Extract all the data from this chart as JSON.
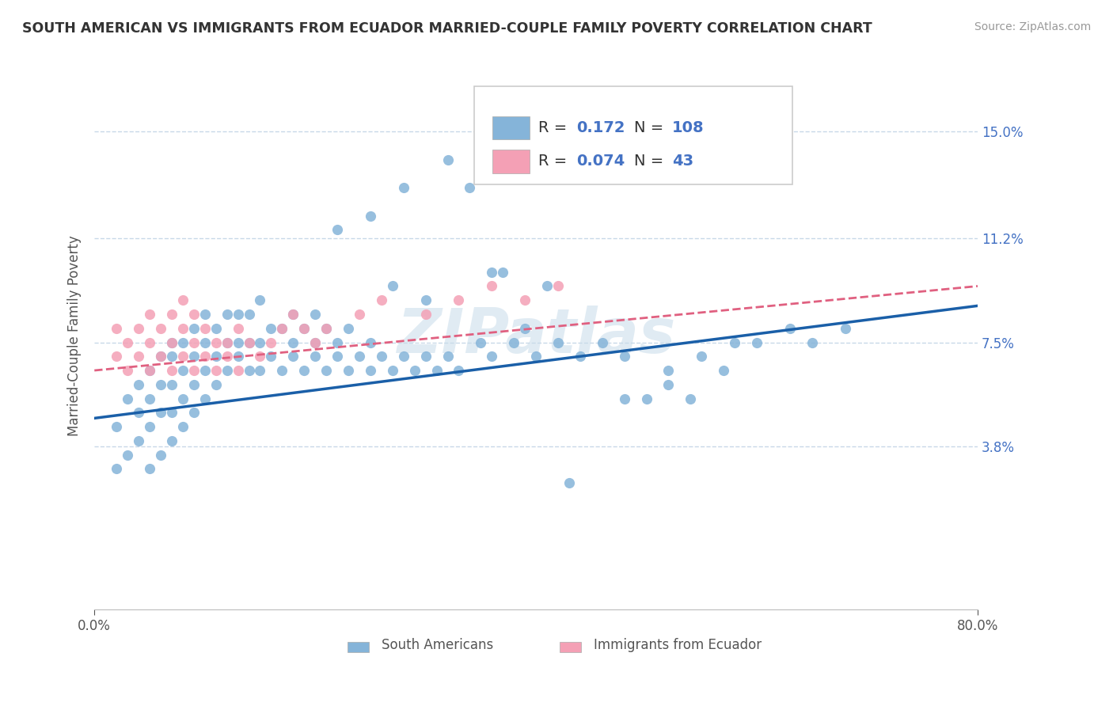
{
  "title": "SOUTH AMERICAN VS IMMIGRANTS FROM ECUADOR MARRIED-COUPLE FAMILY POVERTY CORRELATION CHART",
  "source": "Source: ZipAtlas.com",
  "ylabel": "Married-Couple Family Poverty",
  "xlim": [
    0.0,
    0.8
  ],
  "ylim": [
    -0.02,
    0.175
  ],
  "yticks": [
    0.038,
    0.075,
    0.112,
    0.15
  ],
  "ytick_labels": [
    "3.8%",
    "7.5%",
    "11.2%",
    "15.0%"
  ],
  "xticks": [
    0.0,
    0.8
  ],
  "xtick_labels": [
    "0.0%",
    "80.0%"
  ],
  "r_blue": 0.172,
  "n_blue": 108,
  "r_pink": 0.074,
  "n_pink": 43,
  "blue_color": "#85b4d9",
  "pink_color": "#f4a0b5",
  "line_blue_color": "#1a5fa8",
  "line_pink_color": "#e06080",
  "grid_color": "#c8d8e8",
  "watermark": "ZIPatlas",
  "legend_label_blue": "South Americans",
  "legend_label_pink": "Immigrants from Ecuador",
  "blue_scatter_x": [
    0.02,
    0.02,
    0.03,
    0.03,
    0.04,
    0.04,
    0.04,
    0.05,
    0.05,
    0.05,
    0.05,
    0.06,
    0.06,
    0.06,
    0.06,
    0.07,
    0.07,
    0.07,
    0.07,
    0.07,
    0.08,
    0.08,
    0.08,
    0.08,
    0.09,
    0.09,
    0.09,
    0.09,
    0.1,
    0.1,
    0.1,
    0.1,
    0.11,
    0.11,
    0.11,
    0.12,
    0.12,
    0.12,
    0.13,
    0.13,
    0.13,
    0.14,
    0.14,
    0.14,
    0.15,
    0.15,
    0.15,
    0.16,
    0.16,
    0.17,
    0.17,
    0.18,
    0.18,
    0.18,
    0.19,
    0.19,
    0.2,
    0.2,
    0.2,
    0.21,
    0.21,
    0.22,
    0.22,
    0.23,
    0.23,
    0.24,
    0.25,
    0.25,
    0.26,
    0.27,
    0.28,
    0.29,
    0.3,
    0.31,
    0.32,
    0.33,
    0.35,
    0.36,
    0.38,
    0.4,
    0.42,
    0.44,
    0.46,
    0.48,
    0.5,
    0.52,
    0.55,
    0.58,
    0.6,
    0.63,
    0.65,
    0.68,
    0.27,
    0.3,
    0.37,
    0.41,
    0.48,
    0.52,
    0.54,
    0.57,
    0.22,
    0.25,
    0.28,
    0.32,
    0.34,
    0.36,
    0.39,
    0.43
  ],
  "blue_scatter_y": [
    0.03,
    0.045,
    0.035,
    0.055,
    0.04,
    0.05,
    0.06,
    0.03,
    0.045,
    0.055,
    0.065,
    0.035,
    0.05,
    0.06,
    0.07,
    0.04,
    0.05,
    0.06,
    0.07,
    0.075,
    0.045,
    0.055,
    0.065,
    0.075,
    0.05,
    0.06,
    0.07,
    0.08,
    0.055,
    0.065,
    0.075,
    0.085,
    0.06,
    0.07,
    0.08,
    0.065,
    0.075,
    0.085,
    0.07,
    0.075,
    0.085,
    0.065,
    0.075,
    0.085,
    0.065,
    0.075,
    0.09,
    0.07,
    0.08,
    0.065,
    0.08,
    0.07,
    0.075,
    0.085,
    0.065,
    0.08,
    0.07,
    0.075,
    0.085,
    0.065,
    0.08,
    0.07,
    0.075,
    0.065,
    0.08,
    0.07,
    0.065,
    0.075,
    0.07,
    0.065,
    0.07,
    0.065,
    0.07,
    0.065,
    0.07,
    0.065,
    0.075,
    0.07,
    0.075,
    0.07,
    0.075,
    0.07,
    0.075,
    0.07,
    0.055,
    0.065,
    0.07,
    0.075,
    0.075,
    0.08,
    0.075,
    0.08,
    0.095,
    0.09,
    0.1,
    0.095,
    0.055,
    0.06,
    0.055,
    0.065,
    0.115,
    0.12,
    0.13,
    0.14,
    0.13,
    0.1,
    0.08,
    0.025
  ],
  "pink_scatter_x": [
    0.02,
    0.02,
    0.03,
    0.03,
    0.04,
    0.04,
    0.05,
    0.05,
    0.05,
    0.06,
    0.06,
    0.07,
    0.07,
    0.07,
    0.08,
    0.08,
    0.08,
    0.09,
    0.09,
    0.09,
    0.1,
    0.1,
    0.11,
    0.11,
    0.12,
    0.12,
    0.13,
    0.13,
    0.14,
    0.15,
    0.16,
    0.17,
    0.18,
    0.19,
    0.2,
    0.21,
    0.24,
    0.26,
    0.3,
    0.33,
    0.36,
    0.39,
    0.42
  ],
  "pink_scatter_y": [
    0.07,
    0.08,
    0.065,
    0.075,
    0.07,
    0.08,
    0.065,
    0.075,
    0.085,
    0.07,
    0.08,
    0.065,
    0.075,
    0.085,
    0.07,
    0.08,
    0.09,
    0.065,
    0.075,
    0.085,
    0.07,
    0.08,
    0.065,
    0.075,
    0.07,
    0.075,
    0.065,
    0.08,
    0.075,
    0.07,
    0.075,
    0.08,
    0.085,
    0.08,
    0.075,
    0.08,
    0.085,
    0.09,
    0.085,
    0.09,
    0.095,
    0.09,
    0.095
  ],
  "blue_line_x0": 0.0,
  "blue_line_x1": 0.8,
  "blue_line_y0": 0.048,
  "blue_line_y1": 0.088,
  "pink_line_x0": 0.0,
  "pink_line_x1": 0.8,
  "pink_line_y0": 0.065,
  "pink_line_y1": 0.095
}
